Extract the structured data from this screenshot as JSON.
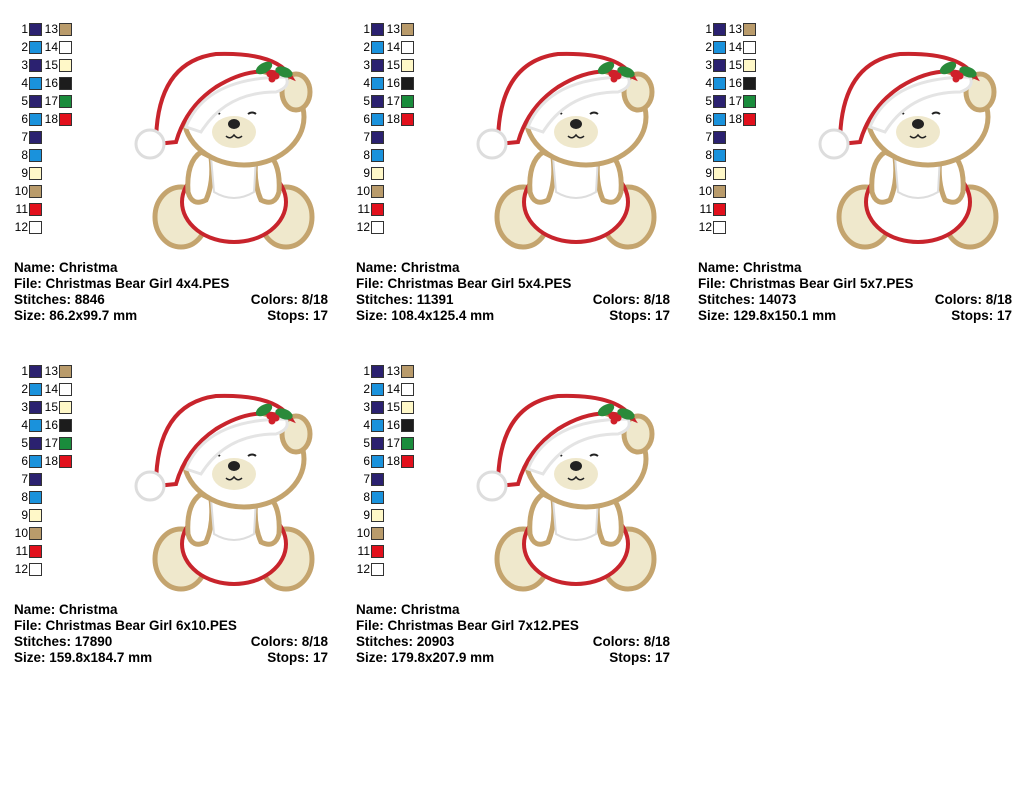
{
  "palette": {
    "rows": [
      {
        "n": "1",
        "c": "#2b2170"
      },
      {
        "n": "2",
        "c": "#1a92dc"
      },
      {
        "n": "3",
        "c": "#2b2170"
      },
      {
        "n": "4",
        "c": "#1a92dc"
      },
      {
        "n": "5",
        "c": "#2b2170"
      },
      {
        "n": "6",
        "c": "#1a92dc"
      },
      {
        "n": "7",
        "c": "#2b2170"
      },
      {
        "n": "8",
        "c": "#1a92dc"
      },
      {
        "n": "9",
        "c": "#fff8c8"
      },
      {
        "n": "10",
        "c": "#b99b6b"
      },
      {
        "n": "11",
        "c": "#e2101c"
      },
      {
        "n": "12",
        "c": "#ffffff"
      }
    ],
    "rows2": [
      {
        "n": "13",
        "c": "#b99b6b"
      },
      {
        "n": "14",
        "c": "#ffffff"
      },
      {
        "n": "15",
        "c": "#fff8c8"
      },
      {
        "n": "16",
        "c": "#1c1c1c"
      },
      {
        "n": "17",
        "c": "#1a8c3c"
      },
      {
        "n": "18",
        "c": "#e2101c"
      }
    ]
  },
  "designs": [
    {
      "name": "Name: Christma",
      "file": "File: Christmas Bear Girl 4x4.PES",
      "stitches": "Stitches: 8846",
      "colors": "Colors: 8/18",
      "size": "Size: 86.2x99.7 mm",
      "stops": "Stops: 17"
    },
    {
      "name": "Name: Christma",
      "file": "File: Christmas Bear Girl 5x4.PES",
      "stitches": "Stitches: 11391",
      "colors": "Colors: 8/18",
      "size": "Size: 108.4x125.4 mm",
      "stops": "Stops: 17"
    },
    {
      "name": "Name: Christma",
      "file": "File: Christmas Bear Girl 5x7.PES",
      "stitches": "Stitches: 14073",
      "colors": "Colors: 8/18",
      "size": "Size: 129.8x150.1 mm",
      "stops": "Stops: 17"
    },
    {
      "name": "Name: Christma",
      "file": "File: Christmas Bear Girl 6x10.PES",
      "stitches": "Stitches: 17890",
      "colors": "Colors: 8/18",
      "size": "Size: 159.8x184.7 mm",
      "stops": "Stops: 17"
    },
    {
      "name": "Name: Christma",
      "file": "File: Christmas Bear Girl 7x12.PES",
      "stitches": "Stitches: 20903",
      "colors": "Colors: 8/18",
      "size": "Size: 179.8x207.9 mm",
      "stops": "Stops: 17"
    }
  ],
  "colors": {
    "tan": "#c4a46e",
    "red": "#c8242c",
    "cream": "#efe8cc",
    "green": "#2a8a3a"
  }
}
